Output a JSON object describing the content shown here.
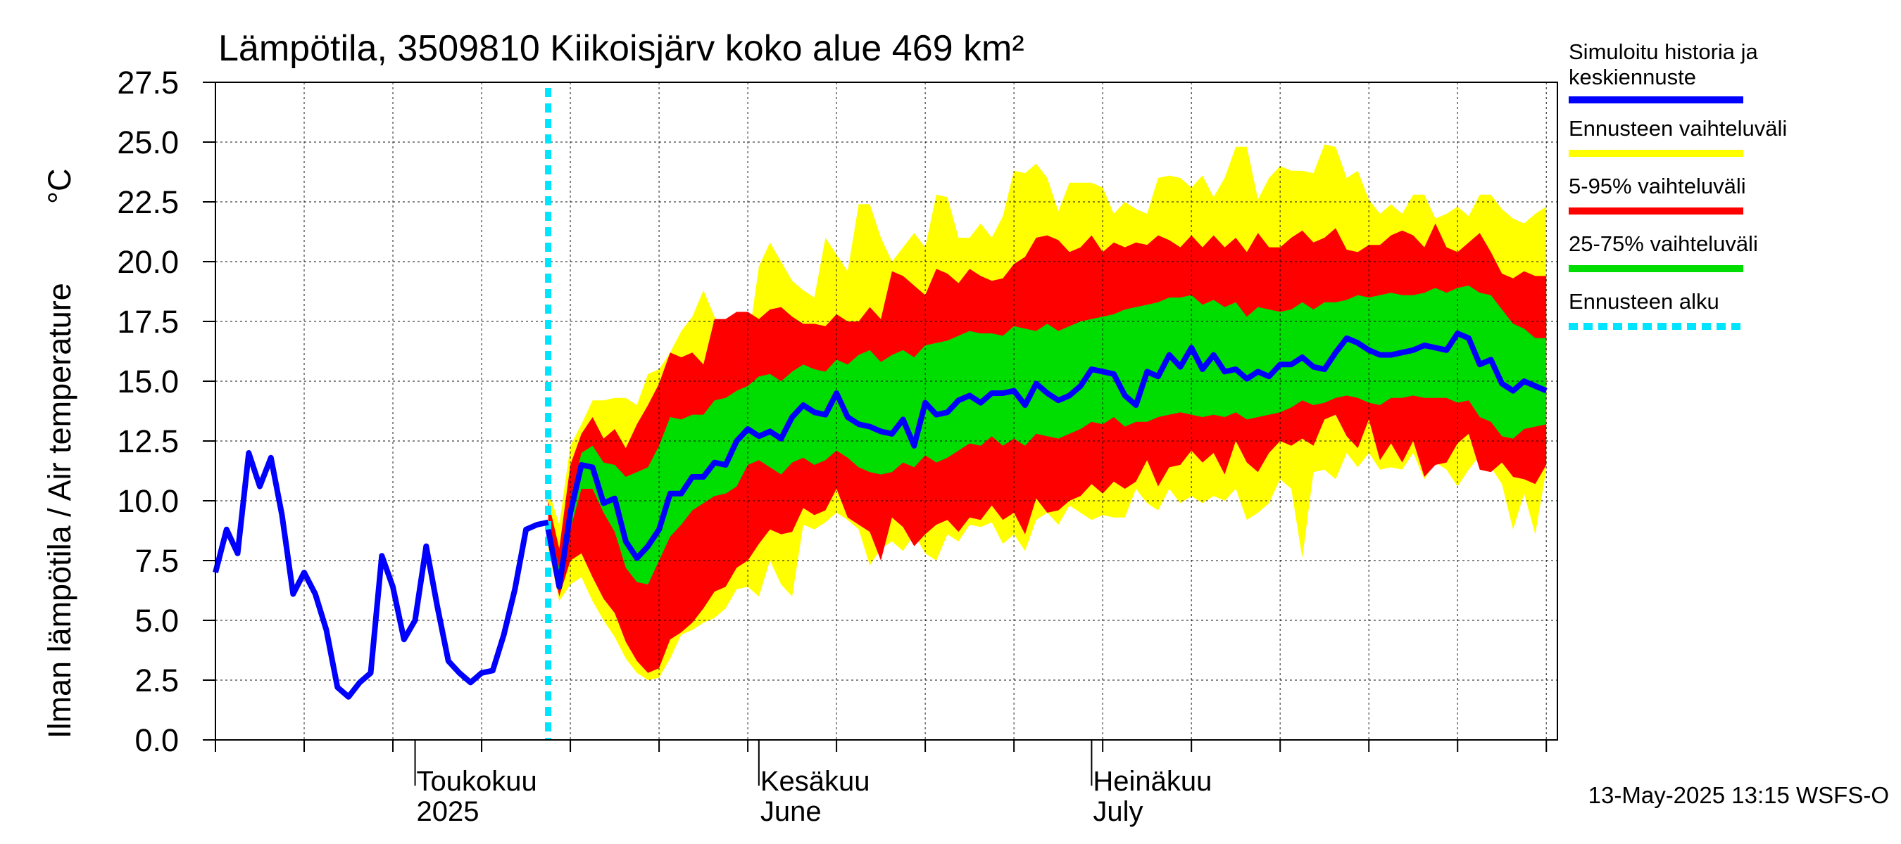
{
  "chart_data": {
    "type": "area",
    "title": "Lämpötila, 3509810 Kiikoisjärv koko alue 469 km²",
    "ylabel": "Ilman lämpötila / Air temperature",
    "yunit": "°C",
    "ylim": [
      0,
      27.5
    ],
    "yticks": [
      "0.0",
      "2.5",
      "5.0",
      "7.5",
      "10.0",
      "12.5",
      "15.0",
      "17.5",
      "20.0",
      "22.5",
      "25.0",
      "27.5"
    ],
    "xlim": [
      "2025-04-13",
      "2025-08-12"
    ],
    "months": [
      {
        "date": "2025-05-01",
        "label": "Toukokuu",
        "sub": "2025"
      },
      {
        "date": "2025-06-01",
        "label": "Kesäkuu",
        "sub": "June"
      },
      {
        "date": "2025-07-01",
        "label": "Heinäkuu",
        "sub": "July"
      }
    ],
    "forecast_start": "2025-05-13",
    "footer": "13-May-2025 13:15 WSFS-O",
    "legend": [
      {
        "label": "Simuloitu historia ja",
        "label2": "keskiennuste",
        "color": "#0000ff",
        "style": "solid"
      },
      {
        "label": "Ennusteen vaihteluväli",
        "color": "#ffff00",
        "style": "solid"
      },
      {
        "label": "5-95% vaihteluväli",
        "color": "#ff0000",
        "style": "solid"
      },
      {
        "label": "25-75% vaihteluväli",
        "color": "#00dd00",
        "style": "solid"
      },
      {
        "label": "Ennusteen alku",
        "color": "#00e5ff",
        "style": "dashed"
      }
    ],
    "colors": {
      "median": "#0000ff",
      "full": "#ffff00",
      "p5_95": "#ff0000",
      "p25_75": "#00dd00",
      "start": "#00e5ff"
    },
    "history": {
      "start": "2025-04-13",
      "values": [
        7.0,
        8.8,
        7.8,
        12.0,
        10.6,
        11.8,
        9.4,
        6.1,
        7.0,
        6.1,
        4.6,
        2.2,
        1.8,
        2.4,
        2.8,
        7.7,
        6.4,
        4.2,
        5.0,
        8.1,
        5.6,
        3.3,
        2.8,
        2.4,
        2.8,
        2.9,
        4.4,
        6.3,
        8.8,
        9.0,
        9.1
      ]
    },
    "forecast": {
      "start": "2025-05-13",
      "median": [
        8.8,
        6.4,
        9.5,
        11.5,
        11.4,
        9.9,
        10.1,
        8.3,
        7.6,
        8.1,
        8.8,
        10.3,
        10.3,
        11.0,
        11.0,
        11.6,
        11.5,
        12.5,
        13.0,
        12.7,
        12.9,
        12.6,
        13.5,
        14.0,
        13.7,
        13.6,
        14.5,
        13.5,
        13.2,
        13.1,
        12.9,
        12.8,
        13.4,
        12.3,
        14.1,
        13.6,
        13.7,
        14.2,
        14.4,
        14.1,
        14.5,
        14.5,
        14.6,
        14.0,
        14.9,
        14.5,
        14.2,
        14.4,
        14.8,
        15.5,
        15.4,
        15.3,
        14.4,
        14.0,
        15.4,
        15.2,
        16.1,
        15.6,
        16.4,
        15.5,
        16.1,
        15.4,
        15.5,
        15.1,
        15.4,
        15.2,
        15.7,
        15.7,
        16.0,
        15.6,
        15.5,
        16.2,
        16.8,
        16.6,
        16.3,
        16.1,
        16.1,
        16.2,
        16.3,
        16.5,
        16.4,
        16.3,
        17.0,
        16.8,
        15.7,
        15.9,
        14.9,
        14.6,
        15.0,
        14.8,
        14.6
      ],
      "p25": [
        8.5,
        6.5,
        8.8,
        10.5,
        10.5,
        9.5,
        8.7,
        7.2,
        6.6,
        6.5,
        7.5,
        8.5,
        9.0,
        9.6,
        9.9,
        10.2,
        10.3,
        10.6,
        11.5,
        11.7,
        11.4,
        11.1,
        11.6,
        11.8,
        11.5,
        11.7,
        12.1,
        11.8,
        11.4,
        11.2,
        11.1,
        11.2,
        11.6,
        11.4,
        11.9,
        11.6,
        11.8,
        12.1,
        12.4,
        12.3,
        12.7,
        12.3,
        12.6,
        12.3,
        12.8,
        12.7,
        12.6,
        12.8,
        13.0,
        13.3,
        13.2,
        13.5,
        13.1,
        13.3,
        13.3,
        13.5,
        13.6,
        13.7,
        13.6,
        13.5,
        13.6,
        13.5,
        13.7,
        13.4,
        13.5,
        13.6,
        13.7,
        13.9,
        14.2,
        14.0,
        14.1,
        14.3,
        14.4,
        14.3,
        14.1,
        14.0,
        14.3,
        14.3,
        14.4,
        14.3,
        14.3,
        14.3,
        14.1,
        14.2,
        13.5,
        13.3,
        12.7,
        12.6,
        13.0,
        13.1,
        13.2
      ],
      "p75": [
        9.0,
        7.2,
        10.0,
        12.0,
        12.3,
        11.6,
        11.5,
        11.0,
        11.2,
        11.4,
        12.3,
        13.5,
        13.4,
        13.6,
        13.6,
        14.2,
        14.3,
        14.6,
        14.8,
        15.2,
        15.3,
        15.0,
        15.4,
        15.7,
        15.5,
        15.4,
        15.9,
        15.7,
        16.1,
        16.3,
        15.8,
        16.1,
        16.3,
        16.0,
        16.5,
        16.6,
        16.7,
        16.9,
        17.1,
        17.0,
        17.0,
        16.9,
        17.3,
        17.2,
        17.1,
        17.4,
        17.1,
        17.3,
        17.5,
        17.6,
        17.7,
        17.8,
        18.0,
        18.1,
        18.2,
        18.3,
        18.5,
        18.5,
        18.6,
        18.2,
        18.4,
        18.1,
        18.3,
        17.7,
        18.1,
        18.0,
        17.9,
        18.0,
        18.3,
        18.0,
        18.3,
        18.3,
        18.4,
        18.6,
        18.5,
        18.6,
        18.7,
        18.6,
        18.6,
        18.7,
        18.9,
        18.7,
        18.9,
        19.0,
        18.7,
        18.6,
        18.0,
        17.4,
        17.2,
        16.8,
        16.8
      ],
      "p5": [
        8.3,
        6.0,
        7.5,
        7.8,
        6.8,
        5.9,
        5.3,
        4.1,
        3.3,
        2.8,
        3.0,
        4.2,
        4.5,
        4.9,
        5.5,
        6.2,
        6.4,
        7.2,
        7.5,
        8.2,
        8.8,
        8.6,
        8.7,
        9.7,
        9.4,
        9.6,
        10.5,
        9.3,
        9.0,
        8.7,
        7.5,
        9.3,
        8.9,
        8.1,
        8.6,
        9.0,
        9.2,
        8.7,
        9.3,
        9.2,
        9.8,
        9.2,
        9.5,
        8.6,
        10.1,
        9.5,
        9.6,
        10.0,
        10.2,
        10.7,
        10.3,
        10.8,
        10.5,
        10.8,
        11.7,
        10.6,
        11.4,
        11.5,
        12.1,
        11.6,
        12.0,
        11.1,
        12.5,
        11.6,
        11.2,
        12.0,
        12.5,
        12.3,
        12.6,
        12.3,
        13.4,
        13.6,
        12.7,
        12.2,
        13.4,
        11.7,
        12.4,
        11.6,
        12.5,
        11.0,
        11.5,
        11.6,
        12.4,
        12.8,
        11.3,
        11.2,
        11.6,
        11.0,
        10.9,
        10.7,
        11.5
      ],
      "p95": [
        10.0,
        8.0,
        11.5,
        12.8,
        13.5,
        12.6,
        13.0,
        12.2,
        13.2,
        14.0,
        14.9,
        16.2,
        16.0,
        16.2,
        15.7,
        17.6,
        17.6,
        17.9,
        17.9,
        17.6,
        18.0,
        18.1,
        17.7,
        17.4,
        17.4,
        17.3,
        17.8,
        17.5,
        17.5,
        18.1,
        17.6,
        19.6,
        19.4,
        19.0,
        18.6,
        19.7,
        19.5,
        19.1,
        19.7,
        19.4,
        19.2,
        19.3,
        19.9,
        20.2,
        21.0,
        21.1,
        20.9,
        20.4,
        20.6,
        21.1,
        20.4,
        20.8,
        20.6,
        20.8,
        20.7,
        21.1,
        20.9,
        20.6,
        21.1,
        20.6,
        21.1,
        20.6,
        21.0,
        20.4,
        21.2,
        20.6,
        20.6,
        21.0,
        21.3,
        20.8,
        21.0,
        21.4,
        20.5,
        20.4,
        20.7,
        20.7,
        21.1,
        21.3,
        21.1,
        20.6,
        21.6,
        20.6,
        20.4,
        20.8,
        21.2,
        20.4,
        19.5,
        19.3,
        19.6,
        19.4,
        19.4
      ],
      "min": [
        8.0,
        5.8,
        6.5,
        6.8,
        5.8,
        5.0,
        4.3,
        3.4,
        2.8,
        2.5,
        2.6,
        3.4,
        4.4,
        4.6,
        4.9,
        5.1,
        5.5,
        6.3,
        6.4,
        6.0,
        7.5,
        6.5,
        6.0,
        9.0,
        8.8,
        9.1,
        9.5,
        9.2,
        8.8,
        7.3,
        8.0,
        8.3,
        7.9,
        8.6,
        7.8,
        7.5,
        8.6,
        8.3,
        9.0,
        8.9,
        9.1,
        8.2,
        8.6,
        7.9,
        9.2,
        9.5,
        9.0,
        9.8,
        9.5,
        9.2,
        9.4,
        9.3,
        9.3,
        10.5,
        9.9,
        9.6,
        10.5,
        9.9,
        10.2,
        9.9,
        10.2,
        10.0,
        10.5,
        9.2,
        9.5,
        9.9,
        10.9,
        10.5,
        7.6,
        11.2,
        11.3,
        10.9,
        12.0,
        11.4,
        12.0,
        11.3,
        11.4,
        11.3,
        12.0,
        10.9,
        11.6,
        11.3,
        10.6,
        11.3,
        11.9,
        11.4,
        10.7,
        8.8,
        10.3,
        8.6,
        11.3
      ],
      "max": [
        10.5,
        9.0,
        12.3,
        13.2,
        14.2,
        14.2,
        14.3,
        14.3,
        14.0,
        15.3,
        15.5,
        16.2,
        17.1,
        17.7,
        18.8,
        17.7,
        16.8,
        16.4,
        16.5,
        19.8,
        20.8,
        20.0,
        19.2,
        18.8,
        18.5,
        21.0,
        20.3,
        19.6,
        22.4,
        22.4,
        21.0,
        20.0,
        20.6,
        21.2,
        20.6,
        22.8,
        22.7,
        21.0,
        21.0,
        21.6,
        21.0,
        21.9,
        23.8,
        23.7,
        24.1,
        23.5,
        22.1,
        23.3,
        23.3,
        23.3,
        23.1,
        22.0,
        22.5,
        22.2,
        22.0,
        23.5,
        23.6,
        23.5,
        23.1,
        23.6,
        22.7,
        23.5,
        24.8,
        24.8,
        22.6,
        23.5,
        24.0,
        23.8,
        23.8,
        23.7,
        24.9,
        24.8,
        23.5,
        23.8,
        22.6,
        22.0,
        22.4,
        22.0,
        22.8,
        22.8,
        21.8,
        22.0,
        22.3,
        21.9,
        22.8,
        22.8,
        22.2,
        21.8,
        21.6,
        22.0,
        22.3
      ]
    }
  }
}
